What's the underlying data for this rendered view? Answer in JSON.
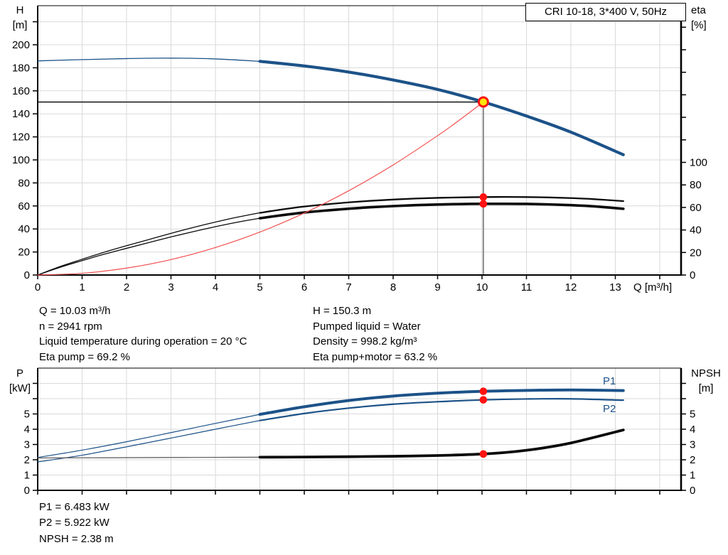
{
  "title_box": "CRI 10-18, 3*400 V, 50Hz",
  "axes": {
    "top_left_label": [
      "H",
      "[m]"
    ],
    "top_right_label": [
      "eta",
      "[%]"
    ],
    "bottom_left_label": [
      "P",
      "[kW]"
    ],
    "bottom_right_label": [
      "NPSH",
      "[m]"
    ],
    "q_label": "Q [m³/h]"
  },
  "annotations": {
    "mid_left": [
      "Q = 10.03 m³/h",
      "n = 2941 rpm",
      "Liquid temperature during operation = 20 °C",
      "Eta pump = 69.2 %"
    ],
    "mid_right": [
      "H = 150.3 m",
      "Pumped liquid = Water",
      "Density = 998.2 kg/m³",
      "Eta pump+motor = 63.2 %"
    ],
    "bottom": [
      "P1 = 6.483 kW",
      "P2 = 5.922 kW",
      "NPSH = 2.38 m"
    ]
  },
  "curve_labels": {
    "p1": "P1",
    "p2": "P2"
  },
  "colors": {
    "blue": "#1c5288",
    "black": "#0a0a0a",
    "red_curve": "#f25050",
    "red_dot": "#ff1212",
    "yellow": "#ffe60a",
    "grid": "#d9d9d9",
    "frame": "#000000",
    "gray_line": "#8c8c8c",
    "npsh_thin": "#555555"
  },
  "chart_data": [
    {
      "type": "line",
      "title": "CRI 10-18, 3*400 V, 50Hz",
      "xlabel": "Q [m³/h]",
      "x_axis": {
        "min": 0,
        "max": 14.48,
        "tick_step": 1,
        "tick_max": 14,
        "labeled_max": 13,
        "show_labels": true
      },
      "y_left": {
        "label": "H [m]",
        "min": 0,
        "max": 234,
        "tick_step": 20,
        "tick_max": 220,
        "labeled_max": 200
      },
      "y_right": {
        "label": "eta [%]",
        "min": 0,
        "max": 239,
        "tick_step": 20,
        "tick_max": 220,
        "labeled_max": 100
      },
      "ref_lines": {
        "h_value": 150.3,
        "v_q": 10.03
      },
      "series": [
        {
          "name": "head-curve",
          "axis": "H",
          "color": "blue",
          "width_thin": 1.3,
          "width_thick": 4.2,
          "thick_from": 5,
          "points": [
            [
              0,
              186
            ],
            [
              1,
              187.1
            ],
            [
              2,
              188
            ],
            [
              3,
              188.4
            ],
            [
              4,
              187.7
            ],
            [
              5,
              185.6
            ],
            [
              6,
              181.6
            ],
            [
              7,
              176.3
            ],
            [
              8,
              169.4
            ],
            [
              9,
              161.2
            ],
            [
              10.03,
              150.3
            ],
            [
              11,
              138.1
            ],
            [
              12,
              124.1
            ],
            [
              13.18,
              104.5
            ]
          ]
        },
        {
          "name": "eta-pump-curve",
          "axis": "eta",
          "color": "black",
          "width_thin": 1.3,
          "width_thick": 2.3,
          "thick_from": 5,
          "points": [
            [
              0,
              0
            ],
            [
              0.5,
              7.5
            ],
            [
              1,
              14
            ],
            [
              1.5,
              20.3
            ],
            [
              2,
              26
            ],
            [
              2.5,
              31.5
            ],
            [
              3,
              37
            ],
            [
              3.5,
              42.2
            ],
            [
              4,
              47
            ],
            [
              4.5,
              51.4
            ],
            [
              5,
              55.2
            ],
            [
              5.5,
              58.2
            ],
            [
              6,
              60.8
            ],
            [
              6.5,
              62.8
            ],
            [
              7,
              64.5
            ],
            [
              7.5,
              65.9
            ],
            [
              8,
              67
            ],
            [
              8.5,
              67.9
            ],
            [
              9,
              68.5
            ],
            [
              9.5,
              68.9
            ],
            [
              10.03,
              69.2
            ],
            [
              10.5,
              69.3
            ],
            [
              11,
              69.2
            ],
            [
              11.5,
              68.9
            ],
            [
              12,
              68.3
            ],
            [
              12.5,
              67.4
            ],
            [
              13.18,
              65.6
            ]
          ]
        },
        {
          "name": "eta-pump-motor-curve",
          "axis": "eta",
          "color": "black",
          "width_thin": 1.3,
          "width_thick": 3.6,
          "thick_from": 5,
          "points": [
            [
              0,
              0
            ],
            [
              0.5,
              6.8
            ],
            [
              1,
              12.8
            ],
            [
              1.5,
              18.5
            ],
            [
              2,
              23.7
            ],
            [
              2.5,
              28.8
            ],
            [
              3,
              33.8
            ],
            [
              3.5,
              38.5
            ],
            [
              4,
              42.9
            ],
            [
              4.5,
              46.9
            ],
            [
              5,
              50.4
            ],
            [
              5.5,
              53.1
            ],
            [
              6,
              55.5
            ],
            [
              6.5,
              57.3
            ],
            [
              7,
              58.9
            ],
            [
              7.5,
              60.2
            ],
            [
              8,
              61.2
            ],
            [
              8.5,
              62
            ],
            [
              9,
              62.6
            ],
            [
              9.5,
              63
            ],
            [
              10.03,
              63.2
            ],
            [
              10.5,
              63.2
            ],
            [
              11,
              63.1
            ],
            [
              11.5,
              62.7
            ],
            [
              12,
              62
            ],
            [
              12.5,
              61
            ],
            [
              13.18,
              58.8
            ]
          ]
        },
        {
          "name": "system-curve",
          "axis": "H",
          "color": "red_curve",
          "width_thin": 1.2,
          "width_thick": 1.2,
          "thick_from": 99,
          "points": [
            [
              0,
              0
            ],
            [
              1,
              1.5
            ],
            [
              2,
              6
            ],
            [
              3,
              13.4
            ],
            [
              4,
              23.9
            ],
            [
              5,
              37.3
            ],
            [
              6,
              53.8
            ],
            [
              7,
              73.2
            ],
            [
              8,
              95.6
            ],
            [
              9,
              121
            ],
            [
              9.5,
              134.8
            ],
            [
              10.03,
              150.3
            ]
          ]
        }
      ],
      "markers": [
        {
          "q": 10.03,
          "v": 150.3,
          "axis": "H",
          "style": "duty"
        },
        {
          "q": 10.03,
          "v": 69.2,
          "axis": "eta",
          "style": "dot"
        },
        {
          "q": 10.03,
          "v": 63.2,
          "axis": "eta",
          "style": "dot"
        }
      ]
    },
    {
      "type": "line",
      "xlabel": "Q [m³/h]",
      "x_axis": {
        "min": 0,
        "max": 14.48,
        "tick_step": 1,
        "tick_max": 14,
        "labeled_max": -1,
        "show_labels": false
      },
      "y_left": {
        "label": "P [kW]",
        "min": 0,
        "max": 8,
        "tick_step": 1,
        "tick_max": 7,
        "labeled_max": 5
      },
      "y_right": {
        "label": "NPSH [m]",
        "min": 0,
        "max": 8,
        "tick_step": 1,
        "tick_max": 7,
        "labeled_max": 5
      },
      "ref_lines": null,
      "series": [
        {
          "name": "p1-curve",
          "axis": "P",
          "color": "blue",
          "width_thin": 1.2,
          "width_thick": 4,
          "thick_from": 5,
          "points": [
            [
              0,
              2.15
            ],
            [
              1,
              2.63
            ],
            [
              2,
              3.18
            ],
            [
              3,
              3.78
            ],
            [
              4,
              4.38
            ],
            [
              5,
              4.97
            ],
            [
              6,
              5.47
            ],
            [
              7,
              5.88
            ],
            [
              8,
              6.17
            ],
            [
              9,
              6.36
            ],
            [
              10.03,
              6.483
            ],
            [
              11,
              6.54
            ],
            [
              12,
              6.57
            ],
            [
              13.18,
              6.53
            ]
          ]
        },
        {
          "name": "p2-curve",
          "axis": "P",
          "color": "blue",
          "width_thin": 1.2,
          "width_thick": 2.2,
          "thick_from": 5,
          "points": [
            [
              0,
              1.86
            ],
            [
              1,
              2.3
            ],
            [
              2,
              2.85
            ],
            [
              3,
              3.42
            ],
            [
              4,
              4.0
            ],
            [
              5,
              4.57
            ],
            [
              6,
              5.03
            ],
            [
              7,
              5.38
            ],
            [
              8,
              5.64
            ],
            [
              9,
              5.8
            ],
            [
              10.03,
              5.922
            ],
            [
              11,
              5.98
            ],
            [
              12,
              5.99
            ],
            [
              13.18,
              5.9
            ]
          ]
        },
        {
          "name": "npsh-curve",
          "axis": "P",
          "color": "black",
          "thin_color": "npsh_thin",
          "width_thin": 1.2,
          "width_thick": 3.8,
          "thick_from": 5,
          "points": [
            [
              0,
              2.12
            ],
            [
              1,
              2.13
            ],
            [
              2,
              2.14
            ],
            [
              3,
              2.15
            ],
            [
              4,
              2.16
            ],
            [
              5,
              2.17
            ],
            [
              6,
              2.18
            ],
            [
              7,
              2.2
            ],
            [
              8,
              2.23
            ],
            [
              9,
              2.28
            ],
            [
              9.5,
              2.32
            ],
            [
              10.03,
              2.38
            ],
            [
              10.5,
              2.47
            ],
            [
              11,
              2.62
            ],
            [
              11.5,
              2.83
            ],
            [
              12,
              3.1
            ],
            [
              12.5,
              3.45
            ],
            [
              13.18,
              3.95
            ]
          ]
        }
      ],
      "markers": [
        {
          "q": 10.03,
          "v": 6.483,
          "axis": "P",
          "style": "dot"
        },
        {
          "q": 10.03,
          "v": 5.922,
          "axis": "P",
          "style": "dot"
        },
        {
          "q": 10.03,
          "v": 2.38,
          "axis": "P",
          "style": "dot"
        }
      ],
      "duty_values": {
        "p1_kw": 6.483,
        "p2_kw": 5.922,
        "npsh_m": 2.38
      }
    }
  ]
}
